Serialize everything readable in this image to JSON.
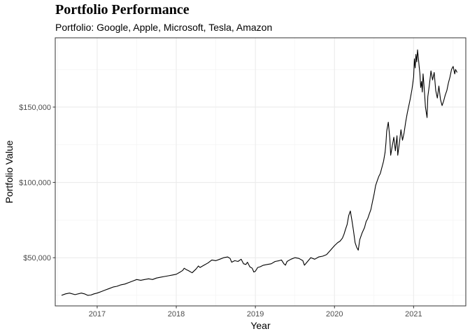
{
  "chart_data": {
    "type": "line",
    "title": "Portfolio Performance",
    "subtitle": "Portfolio: Google, Apple, Microsoft, Tesla, Amazon",
    "xlabel": "Year",
    "ylabel": "Portfolio Value",
    "xlim": [
      2016.47,
      2021.66
    ],
    "ylim": [
      18000,
      196000
    ],
    "x_ticks": [
      {
        "value": 2017,
        "label": "2017"
      },
      {
        "value": 2018,
        "label": "2018"
      },
      {
        "value": 2019,
        "label": "2019"
      },
      {
        "value": 2020,
        "label": "2020"
      },
      {
        "value": 2021,
        "label": "2021"
      }
    ],
    "y_ticks": [
      {
        "value": 50000,
        "label": "$50,000"
      },
      {
        "value": 100000,
        "label": "$100,000"
      },
      {
        "value": 150000,
        "label": "$150,000"
      }
    ],
    "grid": true,
    "legend": "none",
    "line_color": "#000000",
    "series": [
      {
        "x": [
          2016.55,
          2016.6,
          2016.65,
          2016.72,
          2016.8,
          2016.84,
          2016.88,
          2016.92,
          2016.96,
          2017.0,
          2017.05,
          2017.1,
          2017.15,
          2017.2,
          2017.25,
          2017.3,
          2017.35,
          2017.4,
          2017.45,
          2017.5,
          2017.55,
          2017.6,
          2017.65,
          2017.7,
          2017.75,
          2017.8,
          2017.85,
          2017.9,
          2017.95,
          2018.0,
          2018.05,
          2018.08,
          2018.1,
          2018.13,
          2018.15,
          2018.2,
          2018.25,
          2018.28,
          2018.3,
          2018.35,
          2018.4,
          2018.45,
          2018.5,
          2018.55,
          2018.6,
          2018.65,
          2018.68,
          2018.7,
          2018.74,
          2018.78,
          2018.82,
          2018.85,
          2018.88,
          2018.9,
          2018.93,
          2018.96,
          2018.98,
          2019.0,
          2019.03,
          2019.06,
          2019.1,
          2019.15,
          2019.2,
          2019.25,
          2019.3,
          2019.33,
          2019.36,
          2019.38,
          2019.4,
          2019.45,
          2019.5,
          2019.55,
          2019.6,
          2019.62,
          2019.66,
          2019.7,
          2019.75,
          2019.8,
          2019.85,
          2019.9,
          2019.95,
          2020.0,
          2020.04,
          2020.07,
          2020.1,
          2020.12,
          2020.14,
          2020.16,
          2020.18,
          2020.2,
          2020.22,
          2020.24,
          2020.26,
          2020.28,
          2020.3,
          2020.32,
          2020.35,
          2020.38,
          2020.4,
          2020.42,
          2020.44,
          2020.46,
          2020.48,
          2020.5,
          2020.52,
          2020.54,
          2020.56,
          2020.58,
          2020.6,
          2020.62,
          2020.64,
          2020.65,
          2020.66,
          2020.68,
          2020.7,
          2020.71,
          2020.73,
          2020.75,
          2020.77,
          2020.79,
          2020.8,
          2020.82,
          2020.84,
          2020.86,
          2020.88,
          2020.9,
          2020.92,
          2020.94,
          2020.96,
          2020.98,
          2021.0,
          2021.01,
          2021.02,
          2021.03,
          2021.04,
          2021.05,
          2021.06,
          2021.07,
          2021.08,
          2021.09,
          2021.1,
          2021.11,
          2021.12,
          2021.13,
          2021.14,
          2021.15,
          2021.17,
          2021.18,
          2021.2,
          2021.22,
          2021.24,
          2021.26,
          2021.28,
          2021.3,
          2021.32,
          2021.34,
          2021.36,
          2021.38,
          2021.4,
          2021.42,
          2021.44,
          2021.46,
          2021.48,
          2021.5,
          2021.52,
          2021.53,
          2021.55
        ],
        "y": [
          25000,
          26000,
          26500,
          25500,
          26500,
          26000,
          25000,
          25200,
          26000,
          26500,
          27500,
          28500,
          29500,
          30500,
          31000,
          32000,
          32500,
          33500,
          34500,
          35500,
          35000,
          35500,
          36000,
          35500,
          36500,
          37000,
          37500,
          38000,
          38500,
          39000,
          40500,
          41500,
          43000,
          42000,
          41500,
          40000,
          42500,
          44500,
          43500,
          45000,
          46500,
          48500,
          48000,
          49000,
          50000,
          50500,
          49500,
          47000,
          48000,
          47500,
          49000,
          46000,
          45500,
          47000,
          44000,
          43000,
          40500,
          41000,
          43500,
          44000,
          45000,
          45500,
          46000,
          47500,
          48000,
          48500,
          46000,
          45000,
          47500,
          49000,
          50000,
          49500,
          48000,
          45000,
          47500,
          50000,
          49000,
          50500,
          51000,
          52000,
          55000,
          58000,
          60000,
          61000,
          63000,
          65500,
          69000,
          72000,
          78000,
          81000,
          75000,
          68000,
          60000,
          57000,
          55000,
          62000,
          66500,
          70000,
          74000,
          76000,
          79000,
          82000,
          87000,
          92000,
          98000,
          101000,
          104000,
          106000,
          110000,
          114000,
          120000,
          126000,
          134000,
          140000,
          129000,
          118000,
          124000,
          130000,
          121000,
          131000,
          118000,
          126000,
          135000,
          128000,
          133000,
          140000,
          146000,
          151000,
          156000,
          162000,
          170000,
          182000,
          176000,
          185000,
          180000,
          188000,
          183000,
          177000,
          172000,
          163000,
          167000,
          160000,
          172000,
          165000,
          158000,
          150000,
          143000,
          157000,
          165000,
          174000,
          168000,
          173000,
          161000,
          156000,
          164000,
          155000,
          151000,
          154000,
          158000,
          161000,
          166000,
          170000,
          175000,
          177000,
          172000,
          175000,
          173000
        ]
      }
    ]
  }
}
